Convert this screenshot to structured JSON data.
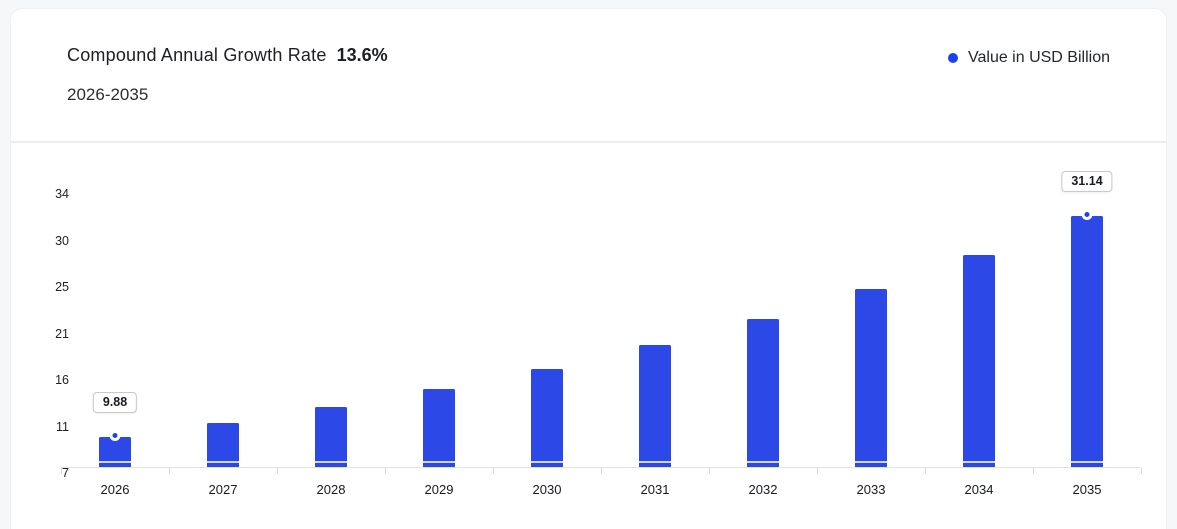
{
  "header": {
    "title": "Compound Annual Growth Rate",
    "cagr_value": "13.6%",
    "subtitle": "2026-2035",
    "legend_label": "Value in USD Billion"
  },
  "colors": {
    "bar": "#2c49e8",
    "accent_dot": "#1d41ee",
    "page_bg": "#f6f7f8",
    "card_bg": "#ffffff",
    "axis_line": "#e2e2e2"
  },
  "chart_data": {
    "type": "bar",
    "title": "Compound Annual Growth Rate 13.6% (2026-2035)",
    "xlabel": "",
    "ylabel": "Value in USD Billion",
    "categories": [
      "2026",
      "2027",
      "2028",
      "2029",
      "2030",
      "2031",
      "2032",
      "2033",
      "2034",
      "2035"
    ],
    "series": [
      {
        "name": "Value in USD Billion",
        "values": [
          9.88,
          11.22,
          12.75,
          14.49,
          16.46,
          18.7,
          21.24,
          24.13,
          27.41,
          31.14
        ]
      }
    ],
    "labeled_points": [
      {
        "category": "2026",
        "label": "9.88"
      },
      {
        "category": "2035",
        "label": "31.14"
      }
    ],
    "y_ticks": [
      "34",
      "30",
      "25",
      "21",
      "16",
      "11",
      "7"
    ],
    "ylim": [
      7,
      34
    ],
    "grid": false,
    "legend_position": "top-right"
  }
}
